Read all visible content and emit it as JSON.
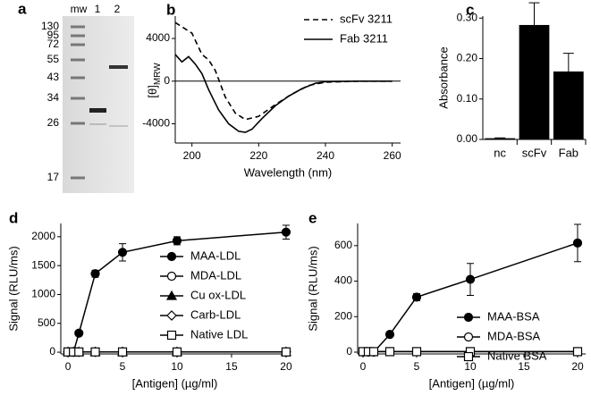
{
  "gel": {
    "panel": "a",
    "lanes": [
      "mw",
      "1",
      "2"
    ],
    "markers": [
      130,
      95,
      72,
      55,
      43,
      34,
      26,
      17
    ]
  },
  "chart_data": [
    {
      "panel": "b",
      "type": "line",
      "x_label": "Wavelength (nm)",
      "y_label": "[θ]",
      "y_label_sub": "MRW",
      "xlim": [
        195,
        262.5
      ],
      "ylim": [
        -5800,
        6100
      ],
      "xticks": [
        200,
        220,
        240,
        260
      ],
      "yticks": [
        -4000,
        0,
        4000
      ],
      "zero_line": true,
      "legend": "upper right",
      "markers": false,
      "series": [
        {
          "name": "scFv 3211",
          "color": "#000000",
          "dash": true,
          "x": [
            195,
            200,
            203,
            205,
            207,
            210,
            213,
            216,
            220,
            225,
            230,
            235,
            240,
            250,
            260
          ],
          "values": [
            5500,
            4500,
            2500,
            2000,
            1000,
            -1500,
            -3000,
            -3600,
            -3300,
            -2200,
            -1200,
            -400,
            -100,
            0,
            0
          ]
        },
        {
          "name": "Fab 3211",
          "color": "#000000",
          "dash": false,
          "x": [
            195,
            197,
            199,
            201,
            203,
            205,
            208,
            211,
            214,
            216,
            218,
            221,
            225,
            229,
            233,
            237,
            240,
            250,
            260
          ],
          "values": [
            2500,
            1800,
            2300,
            1600,
            700,
            -800,
            -2700,
            -4000,
            -4700,
            -4800,
            -4500,
            -3500,
            -2300,
            -1400,
            -700,
            -200,
            -50,
            0,
            0
          ]
        }
      ]
    },
    {
      "panel": "c",
      "type": "bar",
      "y_label": "Absorbance",
      "categories": [
        "nc",
        "scFv",
        "Fab"
      ],
      "values": [
        0.003,
        0.283,
        0.168
      ],
      "errors": [
        0.001,
        0.055,
        0.045
      ],
      "color": "#000000",
      "ylim": [
        0,
        0.305
      ],
      "yticks": [
        {
          "value": 0,
          "label": "0.00"
        },
        {
          "value": 0.1,
          "label": "0.10"
        },
        {
          "value": 0.2,
          "label": "0.20"
        },
        {
          "value": 0.3,
          "label": "0.30"
        }
      ]
    },
    {
      "panel": "d",
      "type": "line",
      "x_label": "[Antigen] (µg/ml)",
      "y_label": "Signal (RLU/ms)",
      "xlim": [
        -0.66,
        20.25
      ],
      "ylim": [
        -30,
        2230
      ],
      "xticks": [
        0,
        5,
        10,
        15,
        20
      ],
      "yticks": [
        0,
        500,
        1000,
        1500,
        2000
      ],
      "legend": "right",
      "markers": true,
      "x": [
        0,
        0.5,
        1,
        2.5,
        5,
        10,
        20
      ],
      "series": [
        {
          "name": "MAA-LDL",
          "color": "#000000",
          "marker": "circle",
          "filled": true,
          "values": [
            0,
            0,
            330,
            1360,
            1730,
            1930,
            2080
          ],
          "errors": [
            0,
            0,
            30,
            60,
            150,
            70,
            120
          ]
        },
        {
          "name": "MDA-LDL",
          "color": "#000000",
          "marker": "circle",
          "filled": false,
          "values": [
            5,
            5,
            5,
            5,
            5,
            5,
            5
          ]
        },
        {
          "name": "Cu ox-LDL",
          "color": "#000000",
          "marker": "triangle",
          "filled": true,
          "values": [
            5,
            5,
            5,
            5,
            5,
            5,
            5
          ]
        },
        {
          "name": "Carb-LDL",
          "color": "#000000",
          "marker": "diamond",
          "filled": false,
          "values": [
            5,
            5,
            5,
            5,
            5,
            5,
            5
          ]
        },
        {
          "name": "Native LDL",
          "color": "#000000",
          "marker": "square",
          "filled": false,
          "values": [
            5,
            5,
            5,
            5,
            5,
            5,
            5
          ]
        }
      ]
    },
    {
      "panel": "e",
      "type": "line",
      "x_label": "[Antigen] (µg/ml)",
      "y_label": "Signal (RLU/ms)",
      "xlim": [
        -0.5,
        20.75
      ],
      "ylim": [
        -10,
        725
      ],
      "xticks": [
        0,
        5,
        10,
        15,
        20
      ],
      "yticks": [
        0,
        200,
        400,
        600
      ],
      "legend": "lower right",
      "markers": true,
      "x": [
        0,
        0.5,
        1,
        2.5,
        5,
        10,
        20
      ],
      "series": [
        {
          "name": "MAA-BSA",
          "color": "#000000",
          "marker": "circle",
          "filled": true,
          "values": [
            0,
            0,
            0,
            100,
            310,
            410,
            615
          ],
          "errors": [
            0,
            0,
            0,
            10,
            20,
            90,
            105
          ]
        },
        {
          "name": "MDA-BSA",
          "color": "#000000",
          "marker": "circle",
          "filled": false,
          "values": [
            3,
            3,
            3,
            3,
            3,
            3,
            3
          ]
        },
        {
          "name": "Native BSA",
          "color": "#000000",
          "marker": "square",
          "filled": false,
          "values": [
            3,
            3,
            3,
            3,
            3,
            3,
            3
          ]
        }
      ]
    }
  ]
}
